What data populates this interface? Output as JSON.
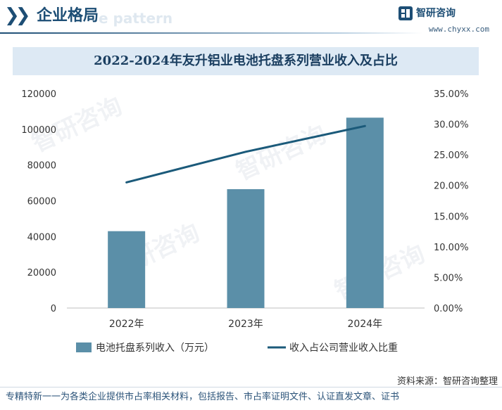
{
  "header": {
    "title": "企业格局",
    "ghost_text": "e pattern",
    "brand_name": "智研咨询",
    "brand_url": "www.chyxx.com",
    "accent_color": "#1d4e75"
  },
  "source": "资料来源：智研咨询整理",
  "footer": "专精特新一一为各类企业提供市占率相关材料，包括报告、市占率证明文件、认证直发文章、证书",
  "watermark_text": "智研咨询",
  "chart_data": {
    "type": "bar",
    "title": "2022-2024年友升铝业电池托盘系列营业收入及占比",
    "categories": [
      "2022年",
      "2023年",
      "2024年"
    ],
    "series": [
      {
        "name": "电池托盘系列收入（万元）",
        "type": "bar",
        "axis": "left",
        "color": "#5b8fa8",
        "values": [
          43000,
          66500,
          106500
        ]
      },
      {
        "name": "收入占公司营业收入比重",
        "type": "line",
        "axis": "right",
        "color": "#1b5a7a",
        "values": [
          20.5,
          25.5,
          29.7
        ]
      }
    ],
    "y_left": {
      "ylim": [
        0,
        120000
      ],
      "ticks": [
        "0",
        "20000",
        "40000",
        "60000",
        "80000",
        "100000",
        "120000"
      ]
    },
    "y_right": {
      "ylim": [
        0,
        35
      ],
      "ticks": [
        "0.00%",
        "5.00%",
        "10.00%",
        "15.00%",
        "20.00%",
        "25.00%",
        "30.00%",
        "35.00%"
      ]
    },
    "grid": false,
    "legend": "bottom"
  }
}
